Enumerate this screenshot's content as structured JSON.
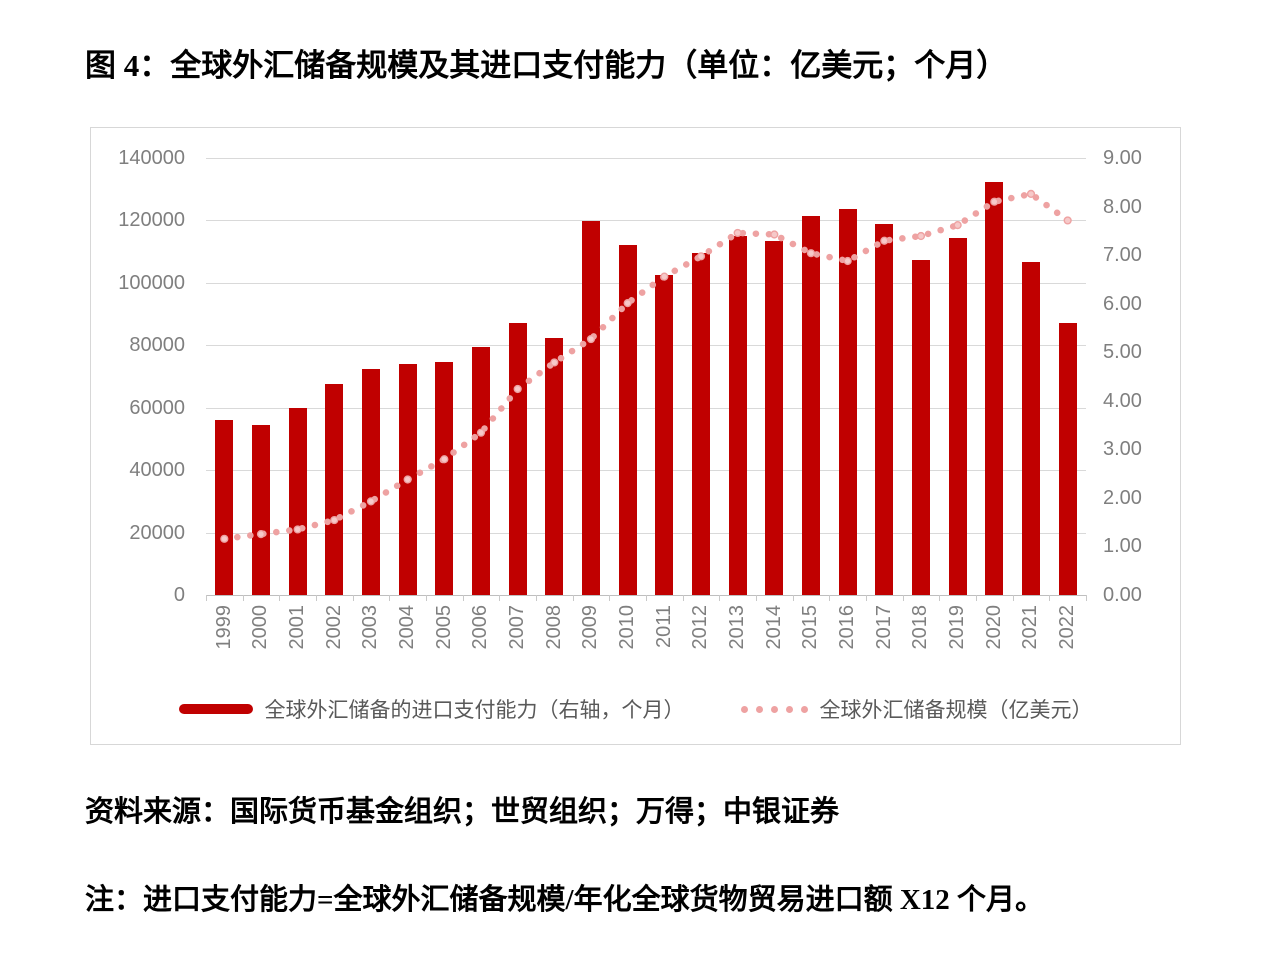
{
  "title": "图 4：全球外汇储备规模及其进口支付能力（单位：亿美元；个月）",
  "source_note": "资料来源：国际货币基金组织；世贸组织；万得；中银证券",
  "footnote": "注：进口支付能力=全球外汇储备规模/年化全球货物贸易进口额 X12 个月。",
  "colors": {
    "bar": "#c00000",
    "dotted_line": "#eea2a2",
    "marker_fill": "#f6c9c9",
    "axis_text": "#7f7f7f",
    "legend_text": "#595959",
    "gridline": "#d9d9d9"
  },
  "chart_data": {
    "type": "bar",
    "title": "全球外汇储备规模及其进口支付能力",
    "categories": [
      "1999",
      "2000",
      "2001",
      "2002",
      "2003",
      "2004",
      "2005",
      "2006",
      "2007",
      "2008",
      "2009",
      "2010",
      "2011",
      "2012",
      "2013",
      "2014",
      "2015",
      "2016",
      "2017",
      "2018",
      "2019",
      "2020",
      "2021",
      "2022"
    ],
    "series": [
      {
        "name": "全球外汇储备的进口支付能力（右轴，个月）",
        "type": "bar",
        "axis": "right",
        "values": [
          3.6,
          3.5,
          3.85,
          4.35,
          4.65,
          4.75,
          4.8,
          5.1,
          5.6,
          5.3,
          7.7,
          7.2,
          6.6,
          7.05,
          7.4,
          7.3,
          7.8,
          7.95,
          7.65,
          6.9,
          7.35,
          8.5,
          6.85,
          5.6
        ]
      },
      {
        "name": "全球外汇储备规模（亿美元）",
        "type": "dotted-line",
        "axis": "left",
        "values": [
          18000,
          19500,
          21000,
          24000,
          30000,
          37000,
          43500,
          52000,
          66000,
          74500,
          82000,
          93500,
          102000,
          108500,
          116000,
          115500,
          109500,
          107000,
          113500,
          115000,
          118500,
          126000,
          128500,
          120000
        ]
      }
    ],
    "left_axis": {
      "min": 0,
      "max": 140000,
      "step": 20000,
      "tick_labels": [
        "0",
        "20000",
        "40000",
        "60000",
        "80000",
        "100000",
        "120000",
        "140000"
      ]
    },
    "right_axis": {
      "min": 0,
      "max": 9,
      "step": 1,
      "tick_labels": [
        "0.00",
        "1.00",
        "2.00",
        "3.00",
        "4.00",
        "5.00",
        "6.00",
        "7.00",
        "8.00",
        "9.00"
      ]
    },
    "grid": true,
    "legend_position": "bottom",
    "xlabel": "",
    "ylabel": ""
  }
}
